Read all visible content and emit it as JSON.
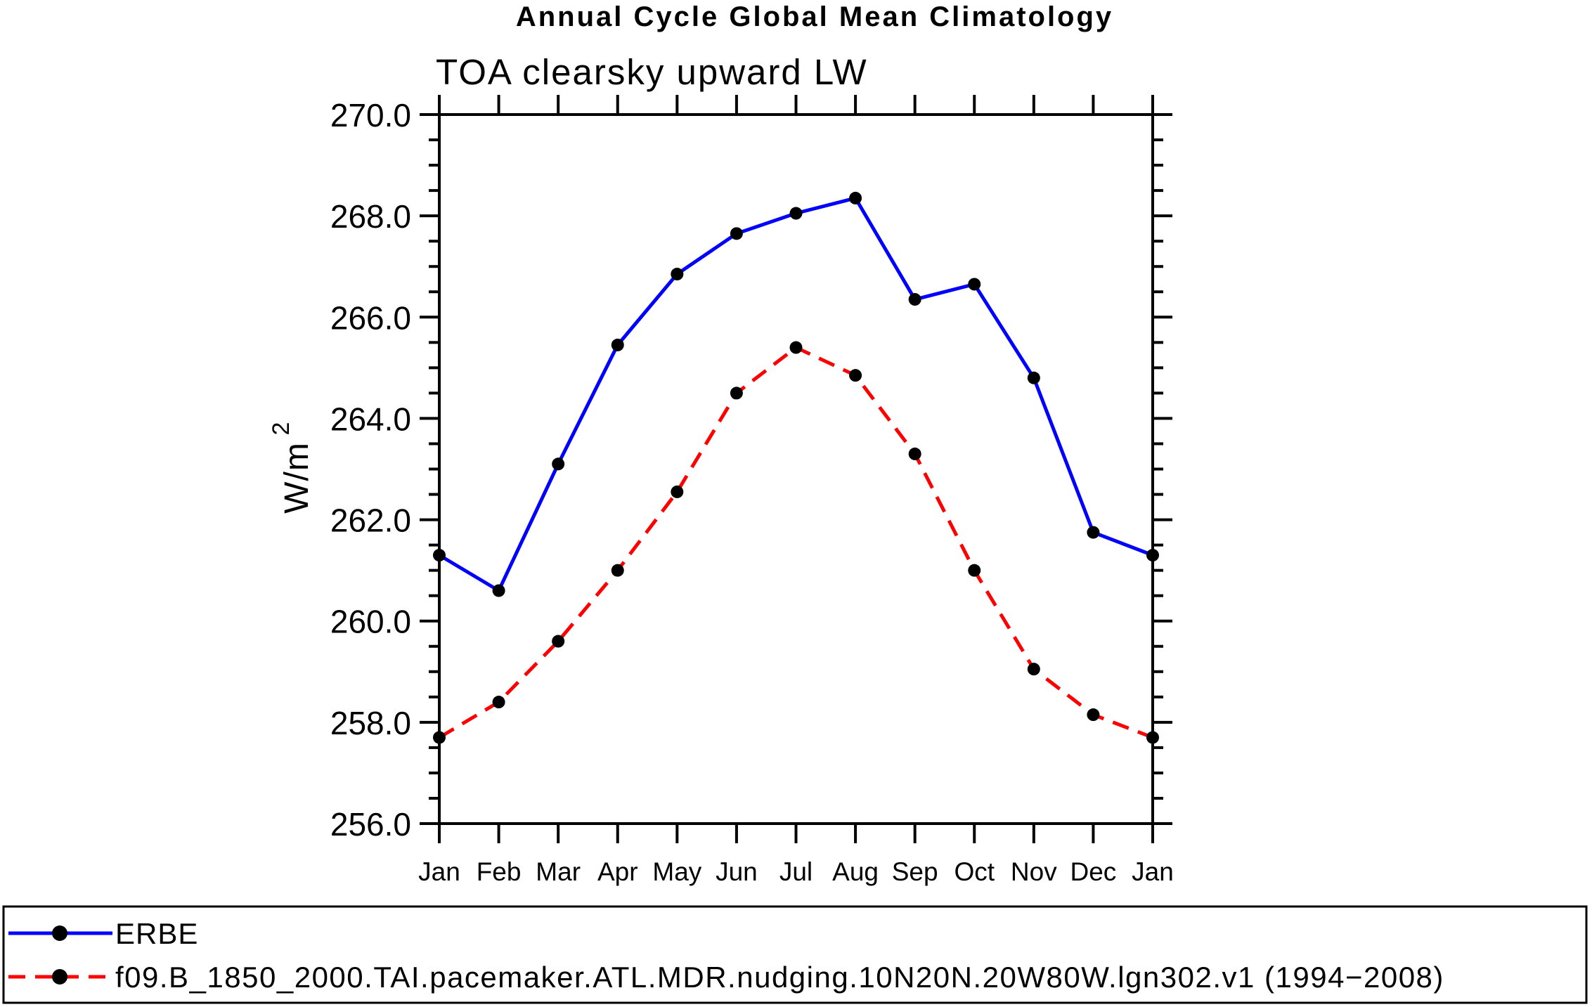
{
  "chart_data": {
    "type": "line",
    "title": "Annual Cycle Global Mean Climatology",
    "subtitle": "TOA clearsky upward LW",
    "ylabel": "W/m²",
    "ylabel_base": "W/m",
    "ylabel_exp": "2",
    "xlabel": "",
    "ylim": [
      256.0,
      270.0
    ],
    "ytick_major": 2.0,
    "ytick_minor": 0.5,
    "grid": false,
    "legend_position": "bottom-left",
    "categories": [
      "Jan",
      "Feb",
      "Mar",
      "Apr",
      "May",
      "Jun",
      "Jul",
      "Aug",
      "Sep",
      "Oct",
      "Nov",
      "Dec",
      "Jan"
    ],
    "series": [
      {
        "name": "ERBE",
        "color": "#0000ff",
        "line_style": "solid",
        "marker": "filled-circle",
        "marker_color": "#000000",
        "values": [
          261.3,
          260.6,
          263.1,
          265.45,
          266.85,
          267.65,
          268.05,
          268.35,
          266.35,
          266.65,
          264.8,
          261.75,
          261.3
        ]
      },
      {
        "name": "f09.B_1850_2000.TAI.pacemaker.ATL.MDR.nudging.10N20N.20W80W.lgn302.v1 (1994−2008)",
        "color": "#ff0000",
        "line_style": "dashed",
        "marker": "filled-circle",
        "marker_color": "#000000",
        "values": [
          257.7,
          258.4,
          259.6,
          261.0,
          262.55,
          264.5,
          265.4,
          264.85,
          263.3,
          261.0,
          259.05,
          258.15,
          257.7
        ]
      }
    ]
  }
}
